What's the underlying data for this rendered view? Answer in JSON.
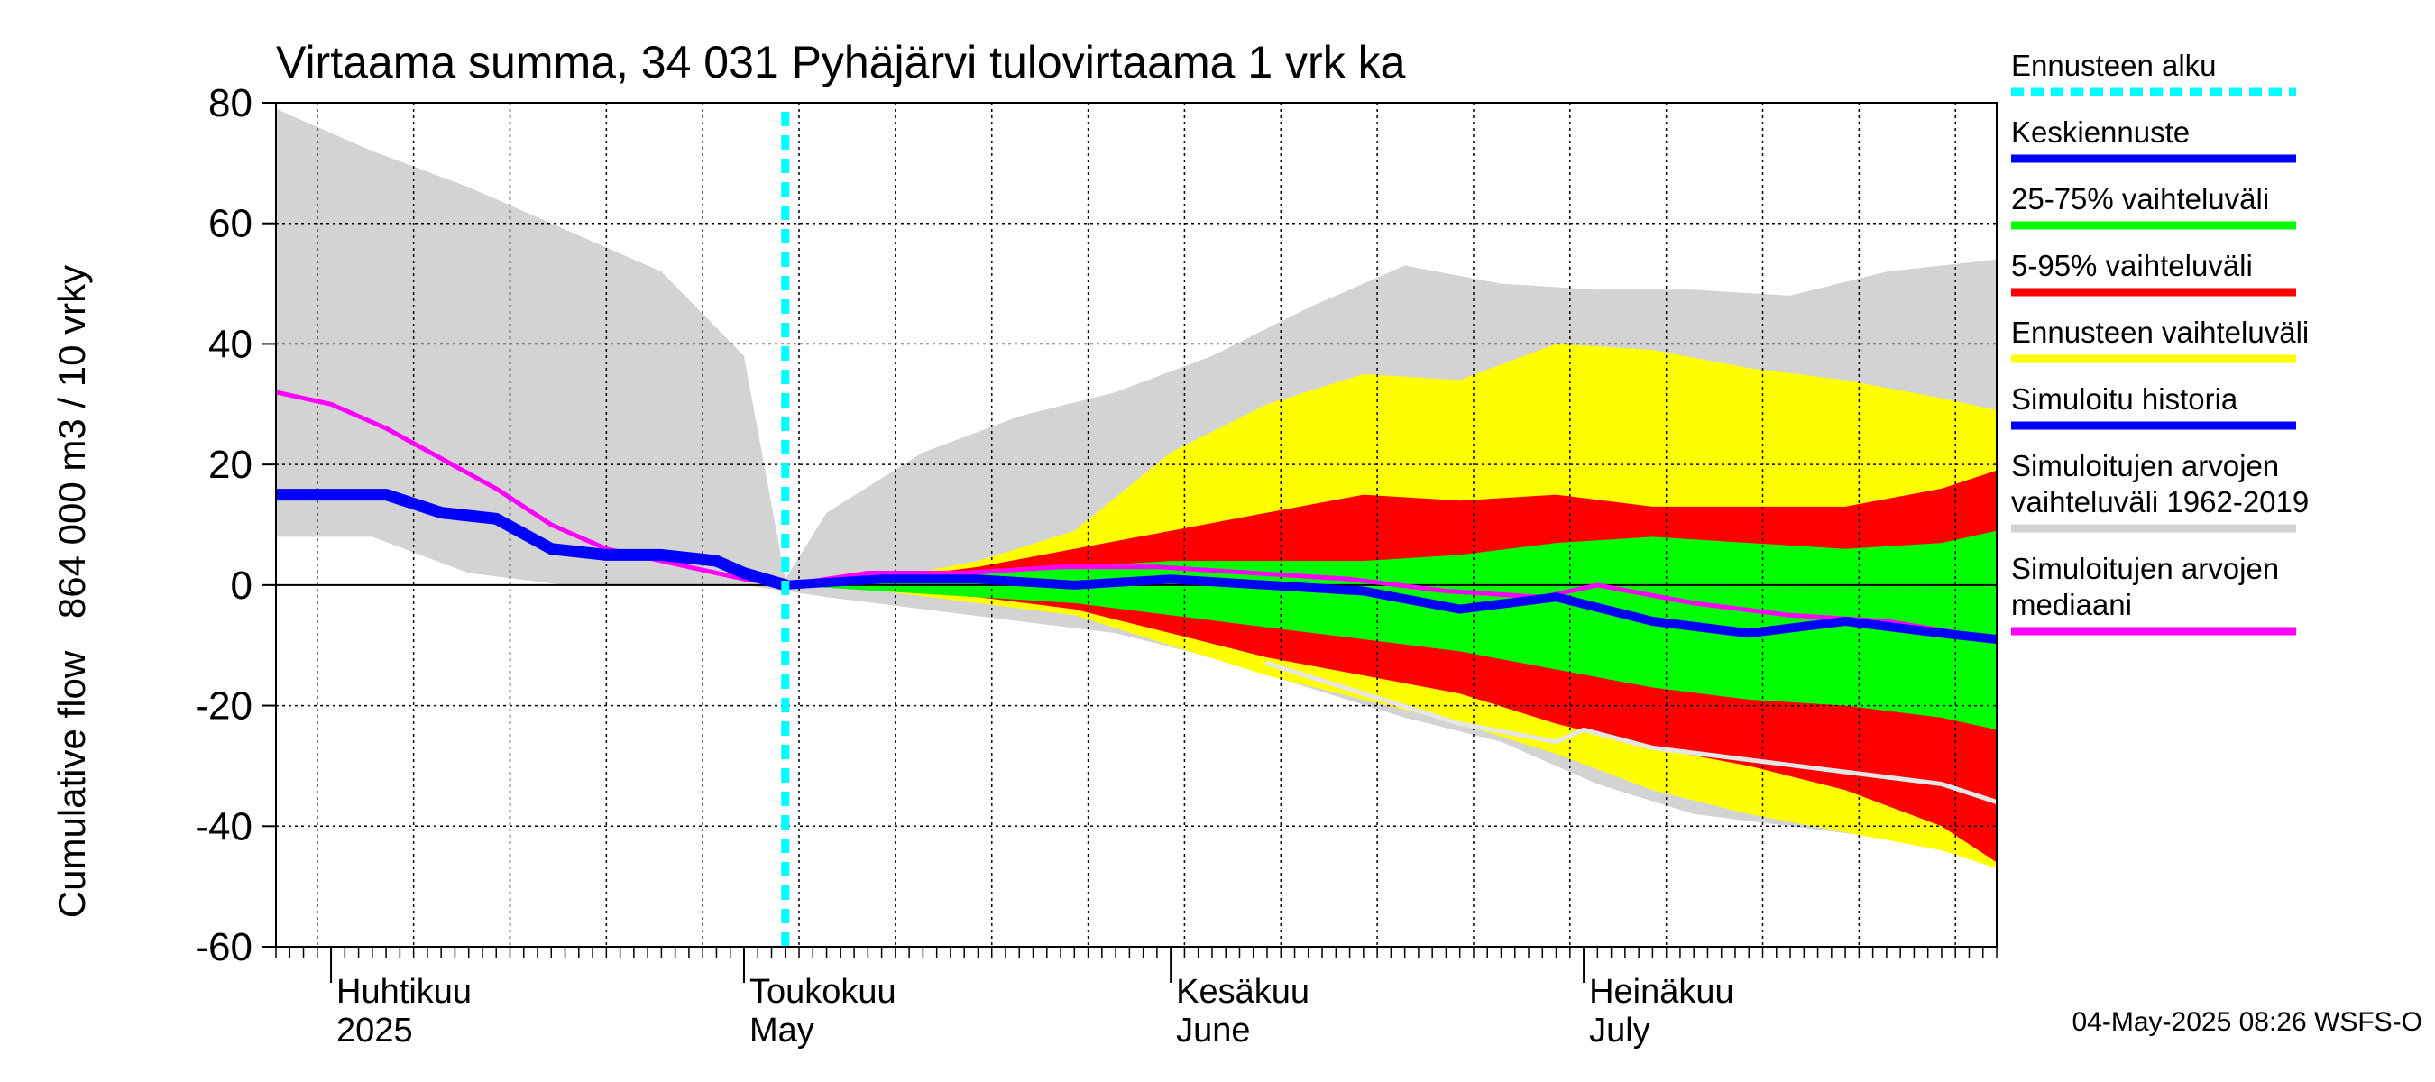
{
  "chart_data": {
    "type": "area",
    "title": "Virtaama summa, 34 031 Pyhäjärvi tulovirtaama 1 vrk ka",
    "ylabel": "864 000 m3 / 10 vrky",
    "ylabel2": "Cumulative flow",
    "ylim": [
      -60,
      80
    ],
    "yticks": [
      -60,
      -40,
      -20,
      0,
      20,
      40,
      60,
      80
    ],
    "xlim": [
      "2025-03-28",
      "2025-07-31"
    ],
    "x_days_start": "2025-03-28",
    "month_labels": [
      {
        "fi": "Huhtikuu",
        "en": "2025",
        "date": "2025-04-01"
      },
      {
        "fi": "Toukokuu",
        "en": "May",
        "date": "2025-05-01"
      },
      {
        "fi": "Kesäkuu",
        "en": "June",
        "date": "2025-06-01"
      },
      {
        "fi": "Heinäkuu",
        "en": "July",
        "date": "2025-07-01"
      }
    ],
    "forecast_start": "2025-05-04",
    "grid": true,
    "legend_position": "right",
    "series": [
      {
        "name": "Simuloitujen arvojen vaihteluväli 1962-2019",
        "kind": "band",
        "color": "#d3d3d3",
        "x": [
          "2025-03-28",
          "2025-04-04",
          "2025-04-11",
          "2025-04-18",
          "2025-04-25",
          "2025-05-01",
          "2025-05-04",
          "2025-05-07",
          "2025-05-14",
          "2025-05-21",
          "2025-05-28",
          "2025-06-04",
          "2025-06-11",
          "2025-06-18",
          "2025-06-25",
          "2025-07-02",
          "2025-07-09",
          "2025-07-16",
          "2025-07-23",
          "2025-07-31"
        ],
        "upper": [
          79,
          72,
          66,
          59,
          52,
          38,
          1,
          12,
          22,
          28,
          32,
          38,
          46,
          53,
          50,
          49,
          49,
          48,
          52,
          54
        ],
        "lower": [
          8,
          8,
          2,
          0,
          0,
          0,
          -1,
          -2,
          -4,
          -6,
          -8,
          -12,
          -17,
          -22,
          -26,
          -33,
          -38,
          -40,
          -42,
          -45
        ]
      },
      {
        "name": "Ennusteen vaihteluväli",
        "kind": "band",
        "color": "#ffff00",
        "x": [
          "2025-05-04",
          "2025-05-11",
          "2025-05-18",
          "2025-05-25",
          "2025-06-01",
          "2025-06-08",
          "2025-06-15",
          "2025-06-22",
          "2025-06-29",
          "2025-07-06",
          "2025-07-13",
          "2025-07-20",
          "2025-07-27",
          "2025-07-31"
        ],
        "upper": [
          0,
          1,
          4,
          9,
          22,
          30,
          35,
          34,
          40,
          39,
          36,
          34,
          31,
          29
        ],
        "lower": [
          0,
          -1,
          -3,
          -5,
          -10,
          -15,
          -19,
          -23,
          -28,
          -34,
          -38,
          -41,
          -44,
          -47
        ]
      },
      {
        "name": "5-95% vaihteluväli",
        "kind": "band",
        "color": "#ff0000",
        "x": [
          "2025-05-04",
          "2025-05-11",
          "2025-05-18",
          "2025-05-25",
          "2025-06-01",
          "2025-06-08",
          "2025-06-15",
          "2025-06-22",
          "2025-06-29",
          "2025-07-06",
          "2025-07-13",
          "2025-07-20",
          "2025-07-27",
          "2025-07-31"
        ],
        "upper": [
          0,
          1,
          3,
          6,
          9,
          12,
          15,
          14,
          15,
          13,
          13,
          13,
          16,
          19
        ],
        "lower": [
          0,
          -1,
          -2,
          -4,
          -8,
          -12,
          -15,
          -18,
          -23,
          -27,
          -30,
          -34,
          -40,
          -46
        ]
      },
      {
        "name": "25-75% vaihteluväli",
        "kind": "band",
        "color": "#00ff00",
        "x": [
          "2025-05-04",
          "2025-05-11",
          "2025-05-18",
          "2025-05-25",
          "2025-06-01",
          "2025-06-08",
          "2025-06-15",
          "2025-06-22",
          "2025-06-29",
          "2025-07-06",
          "2025-07-13",
          "2025-07-20",
          "2025-07-27",
          "2025-07-31"
        ],
        "upper": [
          0,
          1,
          2,
          3,
          4,
          4,
          4,
          5,
          7,
          8,
          7,
          6,
          7,
          9
        ],
        "lower": [
          0,
          -1,
          -2,
          -3,
          -5,
          -7,
          -9,
          -11,
          -14,
          -17,
          -19,
          -20,
          -22,
          -24
        ]
      },
      {
        "name": "Simuloitujen arvojen mediaani",
        "kind": "line",
        "color": "#ff00ff",
        "x": [
          "2025-03-28",
          "2025-04-01",
          "2025-04-05",
          "2025-04-09",
          "2025-04-13",
          "2025-04-17",
          "2025-04-21",
          "2025-04-25",
          "2025-04-29",
          "2025-05-01",
          "2025-05-04",
          "2025-05-10",
          "2025-05-17",
          "2025-05-24",
          "2025-05-31",
          "2025-06-07",
          "2025-06-14",
          "2025-06-21",
          "2025-06-28",
          "2025-07-02",
          "2025-07-09",
          "2025-07-16",
          "2025-07-23",
          "2025-07-31"
        ],
        "y": [
          32,
          30,
          26,
          21,
          16,
          10,
          6,
          4,
          2,
          1,
          0,
          2,
          2,
          3,
          3,
          2,
          1,
          -1,
          -2,
          0,
          -3,
          -5,
          -6,
          -9
        ]
      },
      {
        "name": "Simuloitu historia",
        "kind": "line",
        "color": "#0000ff",
        "x": [
          "2025-03-28",
          "2025-04-01",
          "2025-04-05",
          "2025-04-09",
          "2025-04-13",
          "2025-04-17",
          "2025-04-21",
          "2025-04-25",
          "2025-04-29",
          "2025-05-01",
          "2025-05-04"
        ],
        "y": [
          15,
          15,
          15,
          12,
          11,
          6,
          5,
          5,
          4,
          2,
          0
        ]
      },
      {
        "name": "Keskiennuste",
        "kind": "line",
        "color": "#0000ff",
        "x": [
          "2025-05-04",
          "2025-05-11",
          "2025-05-18",
          "2025-05-25",
          "2025-06-01",
          "2025-06-08",
          "2025-06-15",
          "2025-06-22",
          "2025-06-29",
          "2025-07-06",
          "2025-07-13",
          "2025-07-20",
          "2025-07-27",
          "2025-07-31"
        ],
        "y": [
          0,
          1,
          1,
          0,
          1,
          0,
          -1,
          -4,
          -2,
          -6,
          -8,
          -6,
          -8,
          -9
        ]
      },
      {
        "name": "",
        "kind": "line",
        "color": "#e6e6e6",
        "x": [
          "2025-06-08",
          "2025-06-15",
          "2025-06-22",
          "2025-06-29",
          "2025-07-01",
          "2025-07-06",
          "2025-07-13",
          "2025-07-20",
          "2025-07-27",
          "2025-07-31"
        ],
        "y": [
          -13,
          -18,
          -23,
          -26,
          -24,
          -27,
          -29,
          -31,
          -33,
          -36
        ]
      }
    ]
  },
  "legend": [
    {
      "label": "Ennusteen alku",
      "color": "#00ffff",
      "dashed": true
    },
    {
      "label": "Keskiennuste",
      "color": "#0000ff",
      "dashed": false
    },
    {
      "label": "25-75% vaihteluväli",
      "color": "#00ff00",
      "dashed": false
    },
    {
      "label": "5-95% vaihteluväli",
      "color": "#ff0000",
      "dashed": false
    },
    {
      "label": "Ennusteen vaihteluväli",
      "color": "#ffff00",
      "dashed": false
    },
    {
      "label": "Simuloitu historia",
      "color": "#0000ff",
      "dashed": false
    },
    {
      "label": "Simuloitujen arvojen\nvaihteluväli 1962-2019",
      "color": "#d3d3d3",
      "dashed": false
    },
    {
      "label": "Simuloitujen arvojen\nmediaani",
      "color": "#ff00ff",
      "dashed": false
    }
  ],
  "footer": "04-May-2025 08:26 WSFS-O"
}
